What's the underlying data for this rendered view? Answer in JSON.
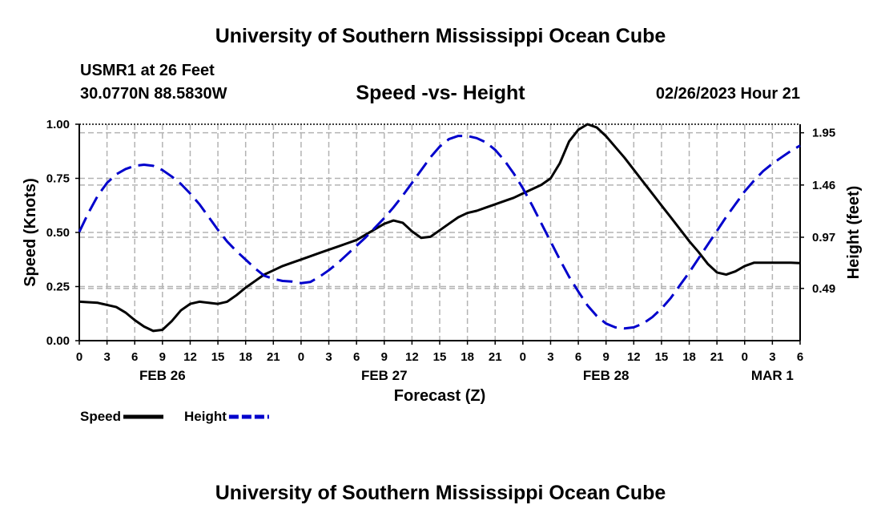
{
  "header": {
    "title": "University of Southern Mississippi Ocean Cube",
    "station": "USMR1 at 26 Feet",
    "location": "30.0770N  88.5830W",
    "timestamp": "02/26/2023 Hour 21"
  },
  "footer": {
    "title": "University of Southern Mississippi Ocean Cube"
  },
  "colors": {
    "speed": "#000000",
    "height": "#0000cc",
    "grid": "#b3b3b3"
  },
  "chart_data": {
    "type": "line",
    "title": "Speed -vs- Height",
    "xlabel": "Forecast (Z)",
    "ylabel": "Speed (Knots)",
    "y2label": "Height (feet)",
    "x_unit": "hours from 00Z Feb 26",
    "xlim": [
      0,
      78
    ],
    "ylim": [
      0,
      1
    ],
    "y2lim": [
      0,
      2.03
    ],
    "x_tick_values": [
      0,
      3,
      6,
      9,
      12,
      15,
      18,
      21,
      24,
      27,
      30,
      33,
      36,
      39,
      42,
      45,
      48,
      51,
      54,
      57,
      60,
      63,
      66,
      69,
      72,
      75,
      78
    ],
    "x_tick_labels": [
      "0",
      "3",
      "6",
      "9",
      "12",
      "15",
      "18",
      "21",
      "0",
      "3",
      "6",
      "9",
      "12",
      "15",
      "18",
      "21",
      "0",
      "3",
      "6",
      "9",
      "12",
      "15",
      "18",
      "21",
      "0",
      "3",
      "6"
    ],
    "day_labels": [
      {
        "x": 9,
        "label": "FEB 26"
      },
      {
        "x": 33,
        "label": "FEB 27"
      },
      {
        "x": 57,
        "label": "FEB 28"
      },
      {
        "x": 75,
        "label": "MAR 1"
      }
    ],
    "y_ticks": [
      {
        "value": 0,
        "label": "0.00"
      },
      {
        "value": 0.25,
        "label": "0.25"
      },
      {
        "value": 0.5,
        "label": "0.50"
      },
      {
        "value": 0.75,
        "label": "0.75"
      },
      {
        "value": 1,
        "label": "1.00"
      }
    ],
    "y2_ticks": [
      {
        "value": 0.49,
        "label": "0.49"
      },
      {
        "value": 0.97,
        "label": "0.97"
      },
      {
        "value": 1.46,
        "label": "1.46"
      },
      {
        "value": 1.95,
        "label": "1.95"
      }
    ],
    "series": [
      {
        "name": "Speed",
        "axis": "left",
        "style": "solid",
        "x": [
          0,
          2,
          4,
          5,
          6,
          7,
          8,
          9,
          10,
          11,
          12,
          13,
          14,
          15,
          16,
          17,
          18,
          19,
          20,
          21,
          22,
          23,
          24,
          25,
          26,
          27,
          28,
          29,
          30,
          31,
          32,
          33,
          34,
          35,
          36,
          37,
          38,
          39,
          40,
          41,
          42,
          43,
          44,
          45,
          46,
          47,
          48,
          49,
          50,
          51,
          52,
          53,
          54,
          55,
          56,
          57,
          58,
          59,
          60,
          61,
          62,
          63,
          64,
          65,
          66,
          67,
          68,
          69,
          70,
          71,
          72,
          73,
          74,
          75,
          76,
          77,
          78
        ],
        "values": [
          0.18,
          0.175,
          0.155,
          0.13,
          0.095,
          0.065,
          0.045,
          0.05,
          0.09,
          0.14,
          0.17,
          0.18,
          0.175,
          0.17,
          0.18,
          0.21,
          0.245,
          0.275,
          0.305,
          0.325,
          0.345,
          0.36,
          0.375,
          0.39,
          0.405,
          0.42,
          0.435,
          0.45,
          0.465,
          0.49,
          0.515,
          0.54,
          0.555,
          0.545,
          0.505,
          0.475,
          0.48,
          0.51,
          0.54,
          0.57,
          0.59,
          0.6,
          0.615,
          0.63,
          0.645,
          0.66,
          0.68,
          0.7,
          0.72,
          0.75,
          0.82,
          0.92,
          0.975,
          1.0,
          0.985,
          0.945,
          0.895,
          0.845,
          0.79,
          0.735,
          0.68,
          0.625,
          0.57,
          0.515,
          0.46,
          0.41,
          0.355,
          0.315,
          0.305,
          0.32,
          0.345,
          0.36,
          0.36,
          0.36,
          0.36,
          0.36,
          0.358
        ]
      },
      {
        "name": "Height",
        "axis": "right",
        "style": "dashed",
        "x": [
          0,
          1,
          2,
          3,
          4,
          5,
          6,
          7,
          8,
          9,
          10,
          11,
          12,
          13,
          14,
          15,
          16,
          17,
          18,
          19,
          20,
          21,
          22,
          23,
          24,
          25,
          26,
          27,
          28,
          29,
          30,
          31,
          32,
          33,
          34,
          35,
          36,
          37,
          38,
          39,
          40,
          41,
          42,
          43,
          44,
          45,
          46,
          47,
          48,
          49,
          50,
          51,
          52,
          53,
          54,
          55,
          56,
          57,
          58,
          59,
          60,
          61,
          62,
          63,
          64,
          65,
          66,
          67,
          68,
          69,
          70,
          71,
          72,
          73,
          74,
          75,
          76,
          77,
          78
        ],
        "values": [
          1.02,
          1.2,
          1.36,
          1.48,
          1.56,
          1.61,
          1.64,
          1.65,
          1.64,
          1.6,
          1.54,
          1.47,
          1.38,
          1.28,
          1.16,
          1.04,
          0.93,
          0.84,
          0.76,
          0.68,
          0.61,
          0.58,
          0.56,
          0.555,
          0.54,
          0.55,
          0.6,
          0.66,
          0.73,
          0.81,
          0.89,
          0.97,
          1.06,
          1.15,
          1.25,
          1.36,
          1.48,
          1.6,
          1.72,
          1.82,
          1.89,
          1.92,
          1.92,
          1.9,
          1.86,
          1.79,
          1.69,
          1.57,
          1.43,
          1.27,
          1.1,
          0.93,
          0.76,
          0.6,
          0.46,
          0.33,
          0.23,
          0.16,
          0.125,
          0.115,
          0.125,
          0.16,
          0.22,
          0.3,
          0.4,
          0.52,
          0.64,
          0.77,
          0.9,
          1.03,
          1.16,
          1.28,
          1.4,
          1.5,
          1.59,
          1.66,
          1.72,
          1.78,
          1.83
        ]
      }
    ],
    "legend": [
      {
        "label": "Speed",
        "style": "solid"
      },
      {
        "label": "Height",
        "style": "dashed"
      }
    ]
  }
}
